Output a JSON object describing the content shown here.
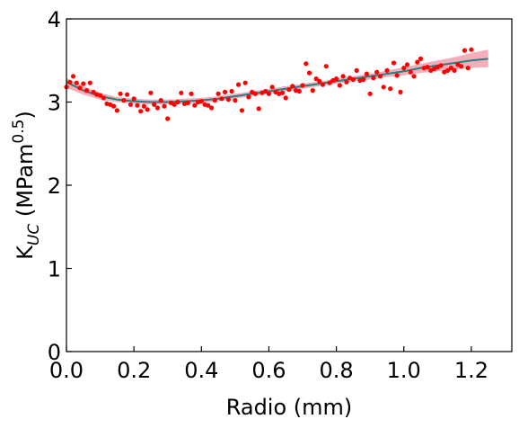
{
  "chart_data": {
    "type": "scatter",
    "xlabel": "Radio (mm)",
    "ylabel": {
      "base": "K",
      "sub": "UC",
      "unit_open": " (MPam",
      "sup": "0.5",
      "unit_close": ")"
    },
    "xlim": [
      0.0,
      1.32
    ],
    "ylim": [
      0,
      4
    ],
    "x_ticks": [
      0.0,
      0.2,
      0.4,
      0.6,
      0.8,
      1.0,
      1.2
    ],
    "x_tick_labels": [
      "0.0",
      "0.2",
      "0.4",
      "0.6",
      "0.8",
      "1.0",
      "1.2"
    ],
    "y_ticks": [
      0,
      1,
      2,
      3,
      4
    ],
    "y_tick_labels": [
      "0",
      "1",
      "2",
      "3",
      "4"
    ],
    "grid": false,
    "colors": {
      "points": "#ff0000",
      "fit_line": "#2a7f7f",
      "band": "#f6a0b0"
    },
    "fit_line": {
      "x": [
        0.0,
        0.05,
        0.1,
        0.15,
        0.2,
        0.25,
        0.3,
        0.35,
        0.4,
        0.45,
        0.5,
        0.55,
        0.6,
        0.65,
        0.7,
        0.75,
        0.8,
        0.85,
        0.9,
        0.95,
        1.0,
        1.05,
        1.1,
        1.15,
        1.2,
        1.25
      ],
      "y": [
        3.24,
        3.14,
        3.07,
        3.03,
        3.01,
        3.0,
        3.0,
        3.01,
        3.02,
        3.04,
        3.07,
        3.1,
        3.13,
        3.16,
        3.19,
        3.22,
        3.25,
        3.28,
        3.31,
        3.34,
        3.37,
        3.41,
        3.44,
        3.47,
        3.5,
        3.52
      ]
    },
    "band": {
      "x": [
        0.0,
        0.05,
        0.1,
        0.15,
        0.2,
        0.25,
        0.3,
        0.35,
        0.4,
        0.45,
        0.5,
        0.55,
        0.6,
        0.65,
        0.7,
        0.75,
        0.8,
        0.85,
        0.9,
        0.95,
        1.0,
        1.05,
        1.1,
        1.15,
        1.2,
        1.25
      ],
      "upper": [
        3.29,
        3.19,
        3.11,
        3.06,
        3.04,
        3.03,
        3.03,
        3.04,
        3.05,
        3.07,
        3.1,
        3.13,
        3.16,
        3.19,
        3.22,
        3.25,
        3.28,
        3.31,
        3.34,
        3.38,
        3.42,
        3.46,
        3.5,
        3.54,
        3.59,
        3.63
      ],
      "lower": [
        3.17,
        3.09,
        3.03,
        3.0,
        2.98,
        2.97,
        2.97,
        2.98,
        2.99,
        3.01,
        3.04,
        3.07,
        3.1,
        3.13,
        3.16,
        3.19,
        3.22,
        3.25,
        3.27,
        3.3,
        3.32,
        3.35,
        3.37,
        3.39,
        3.41,
        3.42
      ]
    },
    "points": {
      "x": [
        0.0,
        0.01,
        0.02,
        0.03,
        0.04,
        0.05,
        0.06,
        0.07,
        0.08,
        0.09,
        0.1,
        0.11,
        0.12,
        0.13,
        0.14,
        0.15,
        0.16,
        0.17,
        0.18,
        0.19,
        0.2,
        0.21,
        0.22,
        0.23,
        0.24,
        0.25,
        0.26,
        0.27,
        0.28,
        0.29,
        0.3,
        0.31,
        0.32,
        0.33,
        0.34,
        0.35,
        0.36,
        0.37,
        0.38,
        0.39,
        0.4,
        0.41,
        0.42,
        0.43,
        0.44,
        0.45,
        0.46,
        0.47,
        0.48,
        0.49,
        0.5,
        0.51,
        0.52,
        0.53,
        0.54,
        0.55,
        0.56,
        0.57,
        0.58,
        0.59,
        0.6,
        0.61,
        0.62,
        0.63,
        0.64,
        0.65,
        0.66,
        0.67,
        0.68,
        0.69,
        0.7,
        0.71,
        0.72,
        0.73,
        0.74,
        0.75,
        0.76,
        0.77,
        0.78,
        0.79,
        0.8,
        0.81,
        0.82,
        0.83,
        0.84,
        0.85,
        0.86,
        0.87,
        0.88,
        0.89,
        0.9,
        0.91,
        0.92,
        0.93,
        0.94,
        0.95,
        0.96,
        0.97,
        0.98,
        0.99,
        1.0,
        1.01,
        1.02,
        1.03,
        1.04,
        1.05,
        1.06,
        1.07,
        1.08,
        1.09,
        1.1,
        1.11,
        1.12,
        1.13,
        1.14,
        1.15,
        1.16,
        1.17,
        1.18,
        1.19,
        1.2
      ],
      "y": [
        3.18,
        3.24,
        3.31,
        3.23,
        3.17,
        3.22,
        3.14,
        3.23,
        3.12,
        3.09,
        3.08,
        3.05,
        2.98,
        2.97,
        2.95,
        2.9,
        3.1,
        3.02,
        3.09,
        2.97,
        3.04,
        2.96,
        2.89,
        2.95,
        2.91,
        3.11,
        2.97,
        2.93,
        3.02,
        2.95,
        2.8,
        2.99,
        2.97,
        3.0,
        3.11,
        2.98,
        2.99,
        3.1,
        2.96,
        3.0,
        3.01,
        2.97,
        2.96,
        2.93,
        3.02,
        3.1,
        3.04,
        3.12,
        3.03,
        3.13,
        3.02,
        3.21,
        2.9,
        3.23,
        3.06,
        3.12,
        3.1,
        2.92,
        3.11,
        3.13,
        3.1,
        3.18,
        3.12,
        3.1,
        3.11,
        3.05,
        3.15,
        3.19,
        3.14,
        3.13,
        3.2,
        3.46,
        3.35,
        3.14,
        3.28,
        3.25,
        3.21,
        3.43,
        3.23,
        3.26,
        3.28,
        3.2,
        3.31,
        3.24,
        3.29,
        3.27,
        3.38,
        3.26,
        3.27,
        3.34,
        3.1,
        3.29,
        3.36,
        3.31,
        3.18,
        3.38,
        3.16,
        3.47,
        3.32,
        3.12,
        3.41,
        3.45,
        3.36,
        3.31,
        3.48,
        3.52,
        3.41,
        3.42,
        3.38,
        3.4,
        3.42,
        3.44,
        3.36,
        3.38,
        3.41,
        3.38,
        3.45,
        3.43,
        3.62,
        3.41,
        3.63
      ]
    }
  }
}
